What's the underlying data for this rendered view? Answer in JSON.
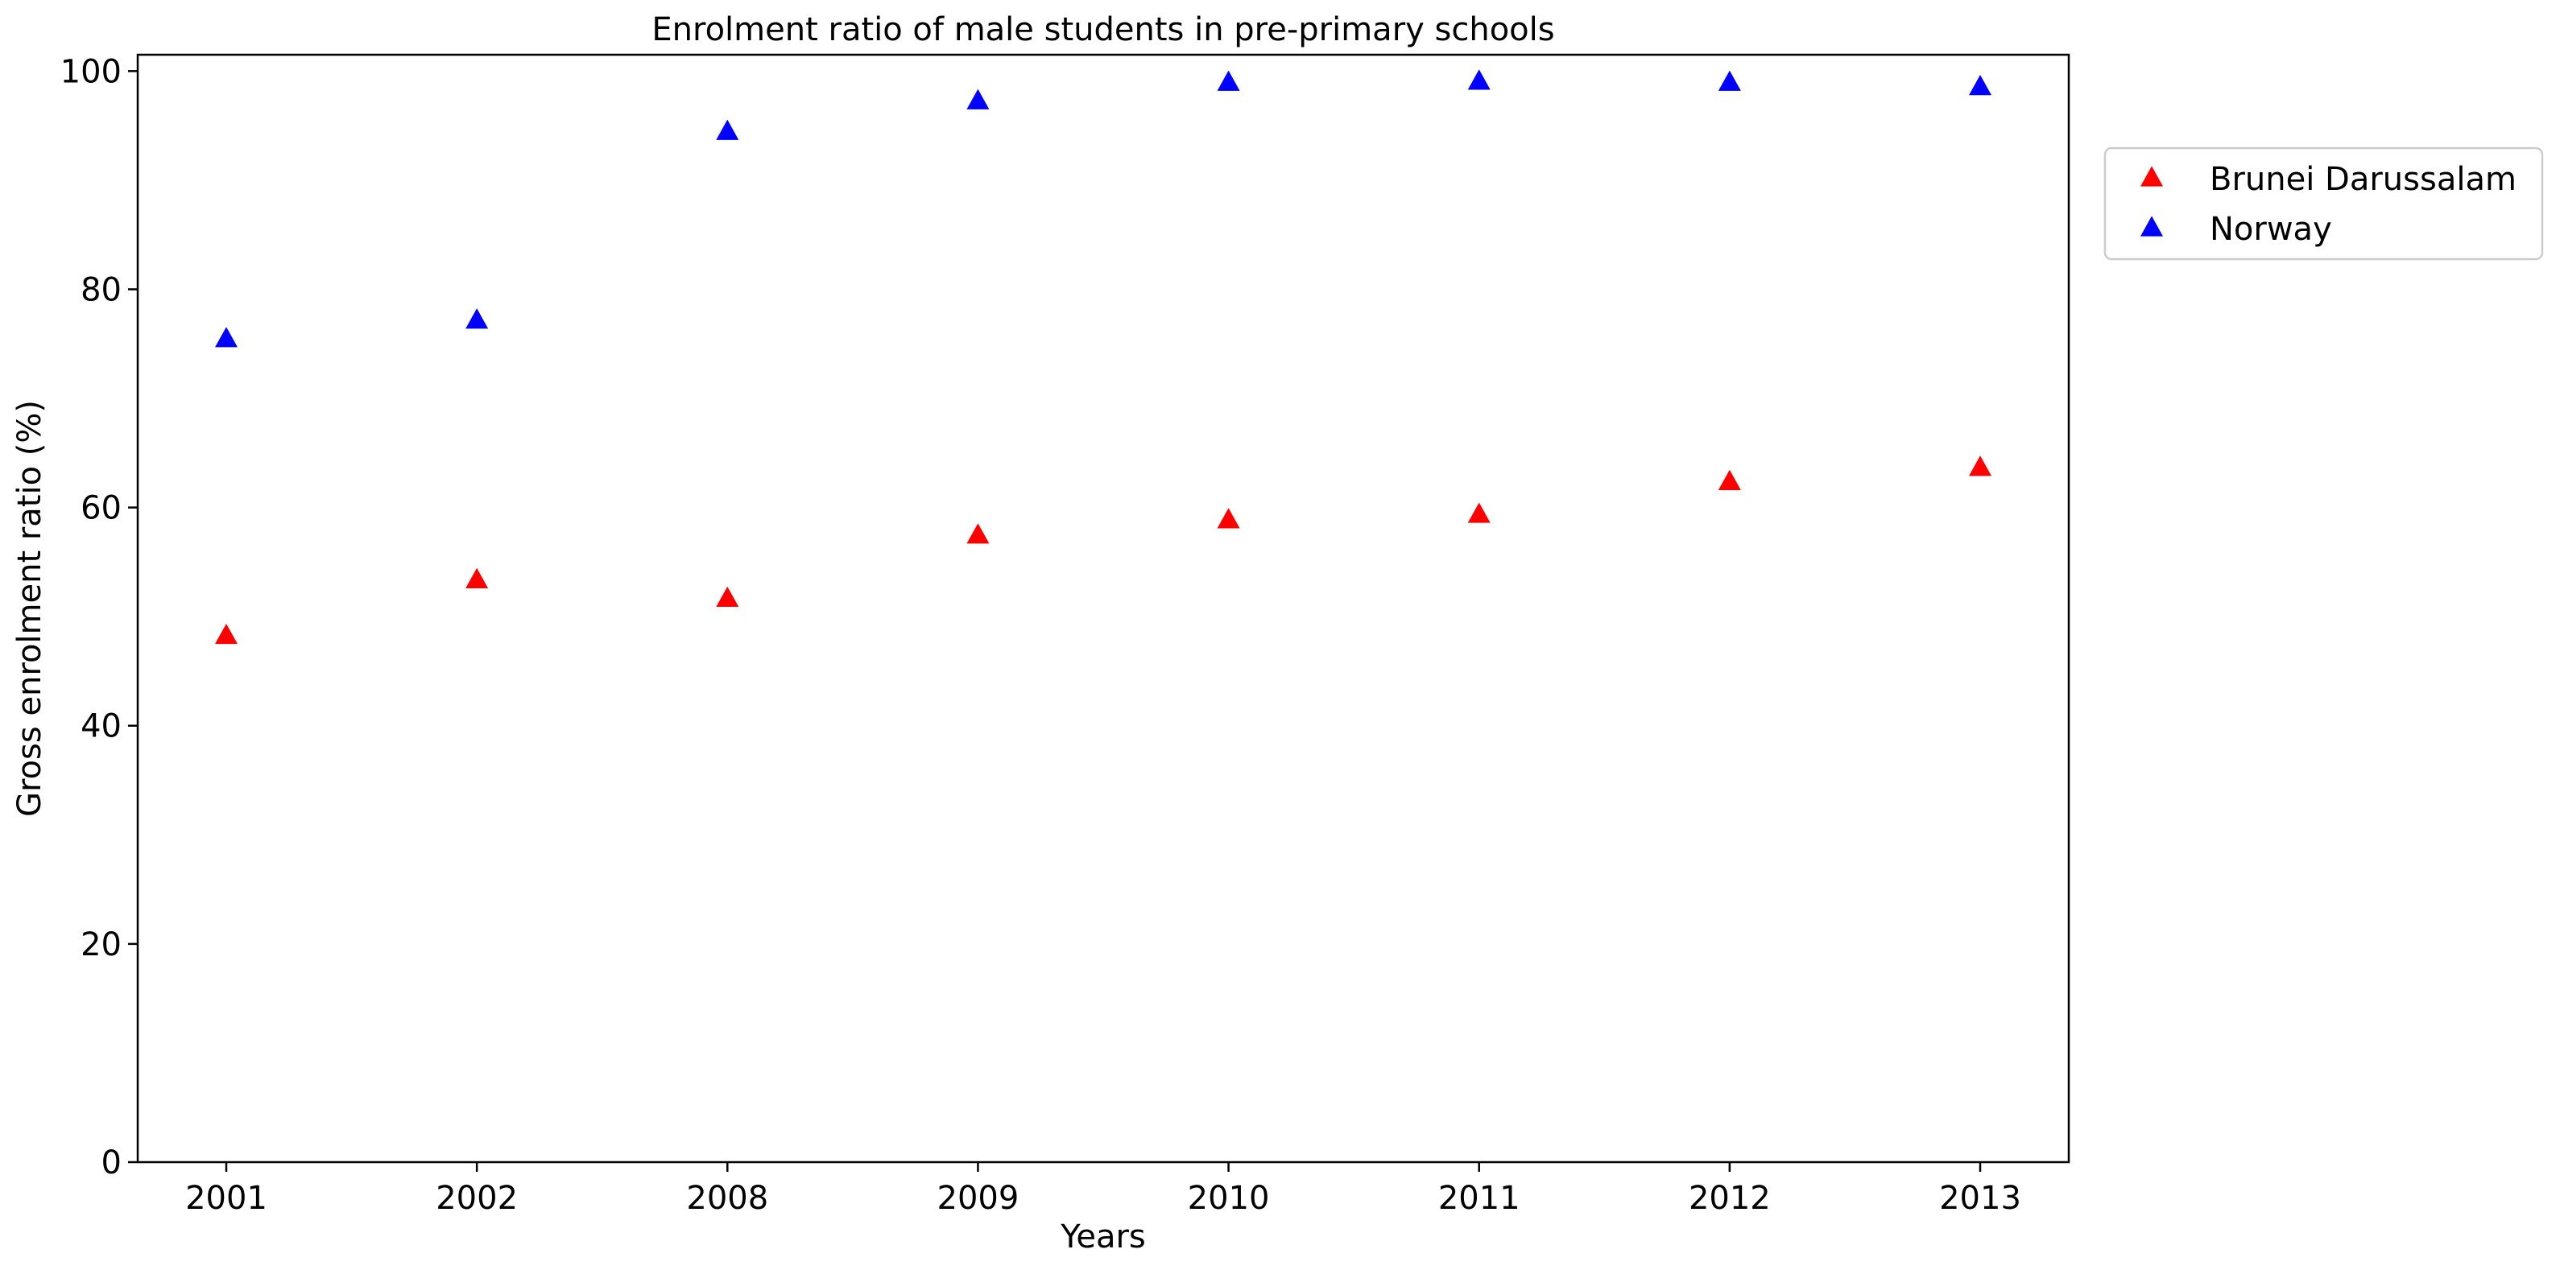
{
  "chart_data": {
    "type": "scatter",
    "title": "Enrolment ratio of male students in pre-primary schools",
    "xlabel": "Years",
    "ylabel": "Gross enrolment ratio (%)",
    "categories": [
      "2001",
      "2002",
      "2008",
      "2009",
      "2010",
      "2011",
      "2012",
      "2013"
    ],
    "ylim": [
      0,
      101.5
    ],
    "yticks": [
      0,
      20,
      40,
      60,
      80,
      100
    ],
    "grid": false,
    "legend_position": "right-outside-top",
    "marker": "triangle-up",
    "series": [
      {
        "name": "Brunei Darussalam",
        "color": "#ff0000",
        "values": [
          48.2,
          53.3,
          51.6,
          57.4,
          58.8,
          59.3,
          62.3,
          63.6
        ]
      },
      {
        "name": "Norway",
        "color": "#0000ff",
        "values": [
          75.4,
          77.1,
          94.4,
          97.2,
          98.9,
          99.0,
          98.9,
          98.5
        ]
      }
    ]
  }
}
